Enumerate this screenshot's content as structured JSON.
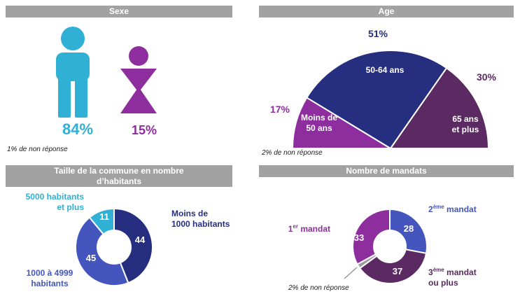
{
  "colors": {
    "header_bg": "#a2a2a2",
    "cyan": "#2fb0d4",
    "magenta": "#8e2d9d",
    "navy": "#252e7f",
    "dark_purple": "#5c2a62",
    "periwinkle": "#4456bd",
    "gray": "#9b9b9b"
  },
  "panels": {
    "sexe": {
      "header": "Sexe",
      "male_pct": "84%",
      "female_pct": "15%",
      "footnote": "1% de non réponse"
    },
    "age": {
      "header": "Age",
      "pct_mid": "51%",
      "pct_right": "30%",
      "pct_left": "17%",
      "seg_mid": "50-64 ans",
      "seg_left_1": "Moins de",
      "seg_left_2": "50 ans",
      "seg_right_1": "65 ans",
      "seg_right_2": "et plus",
      "footnote": "2% de non réponse"
    },
    "taille": {
      "header_1": "Taille de la commune en nombre",
      "header_2": "d’habitants",
      "label_small_1": "Moins de",
      "label_small_2": "1000 habitants",
      "label_mid_1": "1000 à 4999",
      "label_mid_2": "habitants",
      "label_big_1": "5000 habitants",
      "label_big_2": "et plus"
    },
    "mandats": {
      "header": "Nombre de mandats",
      "m1_base": "1",
      "m1_sup": "er",
      "m1_rest": " mandat",
      "m2_base": "2",
      "m2_sup": "ème",
      "m2_rest": " mandat",
      "m3_base": "3",
      "m3_sup": "ème",
      "m3_rest": " mandat",
      "m3_line2": "ou plus",
      "footnote": "2% de non réponse"
    }
  },
  "chart_data": [
    {
      "id": "sexe",
      "type": "pictogram",
      "title": "Sexe",
      "categories": [
        "Hommes",
        "Femmes"
      ],
      "values": [
        84,
        15
      ],
      "unit": "%",
      "note": "1% de non réponse",
      "colors": [
        "#2fb0d4",
        "#8e2d9d"
      ]
    },
    {
      "id": "age",
      "type": "pie",
      "variant": "semicircle",
      "title": "Age",
      "categories": [
        "Moins de 50 ans",
        "50-64 ans",
        "65 ans et plus"
      ],
      "values": [
        17,
        51,
        30
      ],
      "unit": "%",
      "note": "2% de non réponse",
      "colors": [
        "#8e2d9d",
        "#252e7f",
        "#5c2a62"
      ],
      "start_side": "left",
      "direction": "clockwise"
    },
    {
      "id": "taille",
      "type": "pie",
      "variant": "donut",
      "title": "Taille de la commune en nombre d’habitants",
      "categories": [
        "Moins de 1000 habitants",
        "1000 à 4999 habitants",
        "5000 habitants et plus"
      ],
      "values": [
        44,
        45,
        11
      ],
      "colors": [
        "#252e7f",
        "#4456bd",
        "#2fb0d4"
      ],
      "start_angle_deg": 0,
      "direction": "clockwise"
    },
    {
      "id": "mandats",
      "type": "pie",
      "variant": "donut",
      "title": "Nombre de mandats",
      "categories": [
        "2ème mandat",
        "3ème mandat ou plus",
        "Non réponse",
        "1er mandat"
      ],
      "values": [
        28,
        37,
        2,
        33
      ],
      "note": "2% de non réponse",
      "colors": [
        "#4456bd",
        "#5c2a62",
        "#9b9b9b",
        "#8e2d9d"
      ],
      "start_angle_deg": 0,
      "direction": "clockwise"
    }
  ]
}
